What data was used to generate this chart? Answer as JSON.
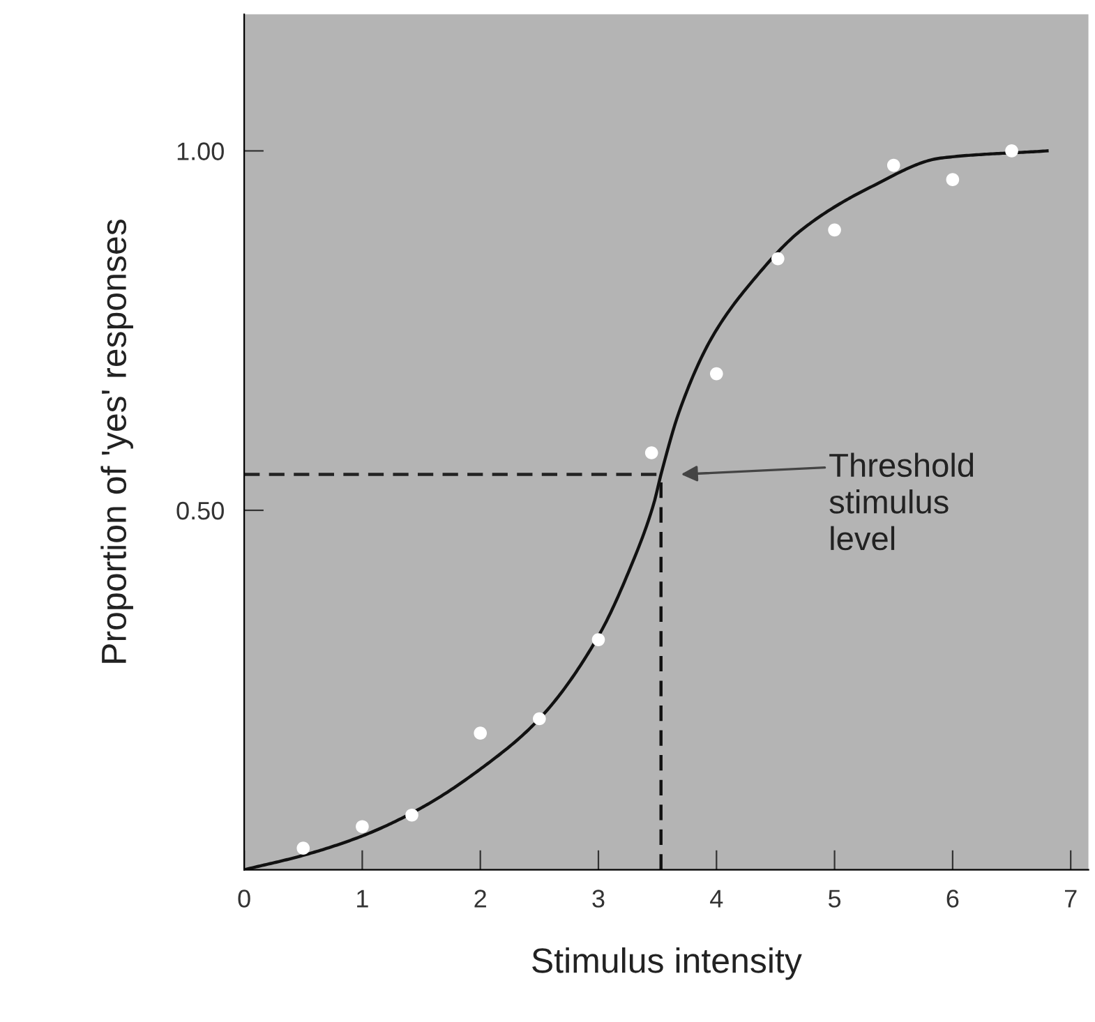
{
  "chart_data": {
    "type": "scatter",
    "xlabel": "Stimulus intensity",
    "ylabel": "Proportion of 'yes' responses",
    "xlim": [
      0,
      7.15
    ],
    "ylim": [
      0,
      1.19
    ],
    "xticks": [
      0,
      1,
      2,
      3,
      4,
      5,
      6,
      7
    ],
    "yticks": [
      {
        "value": 0.5,
        "label": "0.50"
      },
      {
        "value": 1.0,
        "label": "1.00"
      }
    ],
    "series": [
      {
        "color": "#ffffff",
        "marker": "circle",
        "x": [
          0.5,
          1.0,
          1.42,
          2.0,
          2.5,
          3.0,
          3.45,
          4.0,
          4.52,
          5.0,
          5.5,
          6.0,
          6.5
        ],
        "values": [
          0.03,
          0.06,
          0.076,
          0.19,
          0.21,
          0.32,
          0.58,
          0.69,
          0.85,
          0.89,
          0.98,
          0.96,
          1.0
        ]
      },
      {
        "type": "line",
        "color": "#111111",
        "line_style": "solid",
        "x": [
          0,
          0.5,
          1,
          1.5,
          2,
          2.5,
          3,
          3.27,
          3.47,
          3.53,
          3.69,
          3.96,
          4.31,
          4.72,
          5.31,
          5.9,
          6.8
        ],
        "values": [
          0,
          0.02,
          0.047,
          0.086,
          0.14,
          0.21,
          0.325,
          0.42,
          0.51,
          0.55,
          0.64,
          0.74,
          0.82,
          0.89,
          0.95,
          0.99,
          1.0
        ]
      }
    ],
    "ref_lines": [
      {
        "axis": "y",
        "value": 0.55,
        "line_style": "dashed",
        "color": "#222222"
      },
      {
        "axis": "x",
        "value": 3.53,
        "line_style": "dashed",
        "color": "#111111"
      }
    ],
    "annotations": [
      "Threshold\nstimulus\nlevel"
    ]
  }
}
